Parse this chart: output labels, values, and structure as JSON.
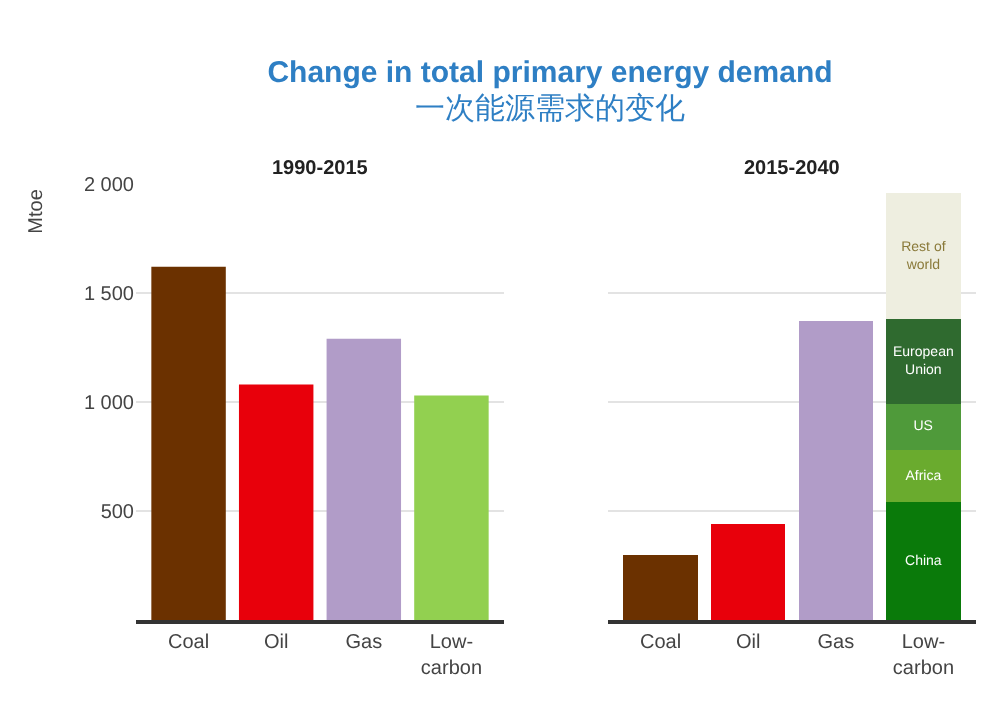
{
  "chart_data": [
    {
      "type": "bar",
      "title": "Change in total primary energy demand",
      "subtitle": "一次能源需求的变化",
      "annotations": [
        "1990-2015"
      ],
      "ylabel": "Mtoe",
      "categories": [
        "Coal",
        "Oil",
        "Gas",
        "Low-carbon"
      ],
      "values": [
        1620,
        1080,
        1290,
        1030
      ],
      "colors": [
        "#6b3100",
        "#e8000b",
        "#b19cc8",
        "#92d050"
      ],
      "ylim": [
        0,
        2000
      ],
      "yticks": [
        {
          "value": 500,
          "label": "500"
        },
        {
          "value": 1000,
          "label": "1 000"
        },
        {
          "value": 1500,
          "label": "1 500"
        },
        {
          "value": 2000,
          "label": "2 000"
        }
      ],
      "grid": "y"
    },
    {
      "type": "bar",
      "title": "2015-2040",
      "stacked": true,
      "categories": [
        "Coal",
        "Oil",
        "Gas",
        "Low-carbon"
      ],
      "series": [
        {
          "colors": [
            "#6b3100",
            "#e8000b",
            "#b19cc8",
            null
          ],
          "values": [
            300,
            440,
            1370,
            null
          ]
        },
        {
          "name": "China",
          "color": "#0a7a0a",
          "values": [
            null,
            null,
            null,
            540
          ]
        },
        {
          "name": "Africa",
          "color": "#6aab2e",
          "values": [
            null,
            null,
            null,
            240
          ]
        },
        {
          "name": "US",
          "color": "#4f9a3a",
          "values": [
            null,
            null,
            null,
            210
          ]
        },
        {
          "name": "European Union",
          "color": "#2f6a2f",
          "values": [
            null,
            null,
            null,
            390
          ]
        },
        {
          "name": "Rest of world",
          "color": "#eeeee0",
          "values": [
            null,
            null,
            null,
            580
          ]
        }
      ],
      "ylim": [
        0,
        2000
      ],
      "yticks": [
        500,
        1000,
        1500,
        2000
      ],
      "tick_labels": "x",
      "grid": "y"
    }
  ]
}
